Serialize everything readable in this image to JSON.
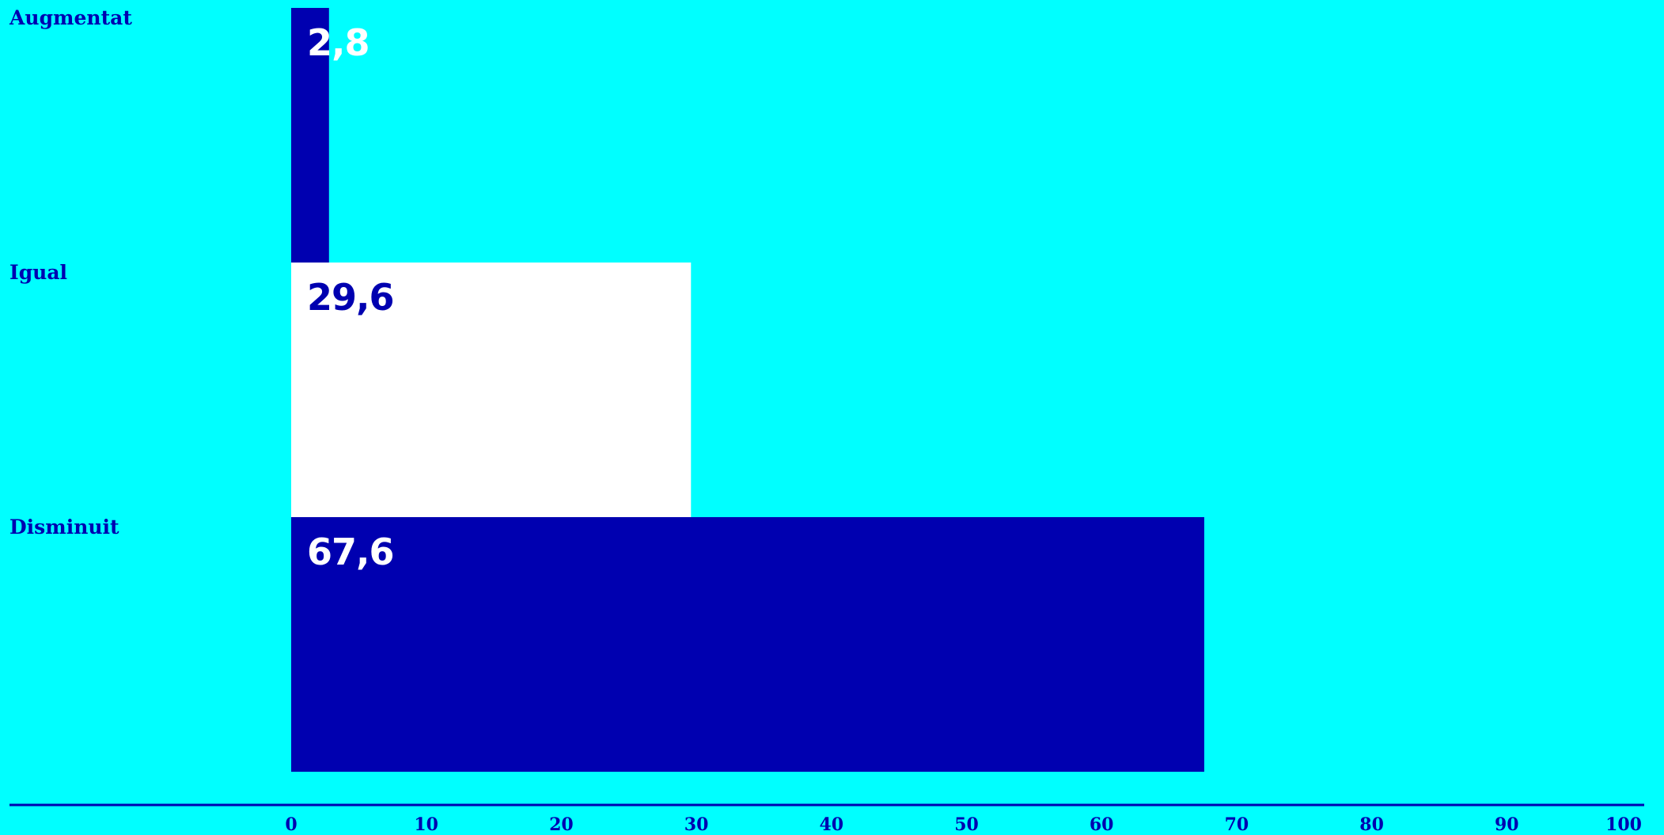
{
  "chart_data": {
    "type": "bar",
    "orientation": "horizontal",
    "categories": [
      "Augmentat",
      "Igual",
      "Disminuit"
    ],
    "values": [
      2.8,
      29.6,
      67.6
    ],
    "value_labels": [
      "2,8",
      "29,6",
      "67,6"
    ],
    "xlim": [
      0,
      100
    ],
    "x_ticks": [
      0,
      10,
      20,
      30,
      40,
      50,
      60,
      70,
      80,
      90,
      100
    ],
    "x_tick_labels": [
      "0",
      "10",
      "20",
      "30",
      "40",
      "50",
      "60",
      "70",
      "80",
      "90",
      "100"
    ],
    "grid": false,
    "legend": "none"
  },
  "colors": {
    "background": "#00ffff",
    "bars": [
      "#0000b0",
      "#ffffff",
      "#0000b0"
    ],
    "value_text": [
      "#ffffff",
      "#0000b0",
      "#ffffff"
    ],
    "axis": "#0000b0",
    "labels": "#0000b0"
  }
}
